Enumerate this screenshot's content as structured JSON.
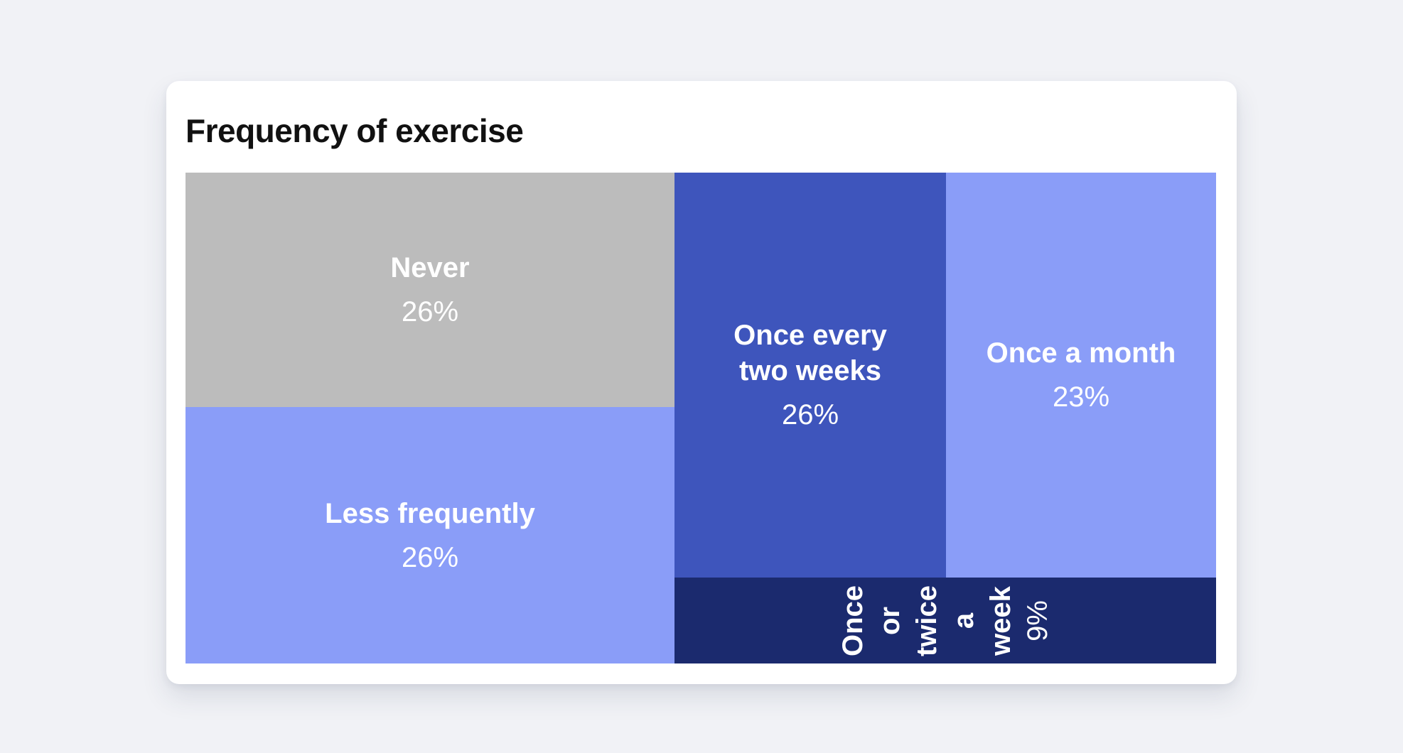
{
  "page": {
    "background": "#f1f2f6"
  },
  "card": {
    "background": "#ffffff",
    "title": "Frequency of exercise",
    "title_color": "#111111"
  },
  "chart_data": {
    "type": "treemap",
    "title": "Frequency of exercise",
    "unit": "%",
    "legend": "none",
    "label_text_color": "#ffffff",
    "items": [
      {
        "label": "Never",
        "value": 26,
        "value_label": "26%",
        "color": "#bcbcbc",
        "label_orientation": "horizontal"
      },
      {
        "label": "Less frequently",
        "value": 26,
        "value_label": "26%",
        "color": "#8a9df8",
        "label_orientation": "horizontal"
      },
      {
        "label": "Once every two weeks",
        "value": 26,
        "value_label": "26%",
        "color": "#3e55bc",
        "label_orientation": "horizontal"
      },
      {
        "label": "Once a month",
        "value": 23,
        "value_label": "23%",
        "color": "#8a9df8",
        "label_orientation": "horizontal"
      },
      {
        "label": "Once or twice a week",
        "value": 9,
        "value_label": "9%",
        "color": "#1b2a6e",
        "label_orientation": "rotated-90"
      }
    ]
  }
}
